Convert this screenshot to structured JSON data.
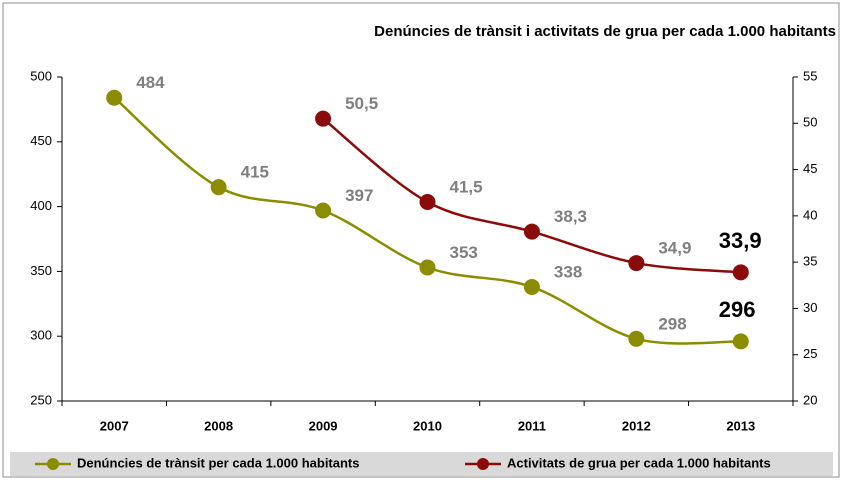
{
  "chart_data": {
    "type": "line",
    "title": "Denúncies de trànsit i activitats de grua per cada 1.000 habitants",
    "categories": [
      "2007",
      "2008",
      "2009",
      "2010",
      "2011",
      "2012",
      "2013"
    ],
    "series": [
      {
        "name": "Denúncies de trànsit per cada 1.000 habitants",
        "color": "#8c8c00",
        "axis": "y",
        "values": [
          484,
          415,
          397,
          353,
          338,
          298,
          296
        ]
      },
      {
        "name": "Activitats de grua per cada 1.000 habitants",
        "color": "#8b0a0a",
        "axis": "y2",
        "values": [
          null,
          null,
          50.5,
          41.5,
          38.3,
          34.9,
          33.9
        ],
        "value_labels": [
          null,
          null,
          "50,5",
          "41,5",
          "38,3",
          "34,9",
          "33,9"
        ]
      }
    ],
    "ylim": [
      250,
      500
    ],
    "yticks": [
      250,
      300,
      350,
      400,
      450,
      500
    ],
    "y2lim": [
      20,
      55
    ],
    "y2ticks": [
      20,
      25,
      30,
      35,
      40,
      45,
      50,
      55
    ],
    "legend": "bottom"
  }
}
